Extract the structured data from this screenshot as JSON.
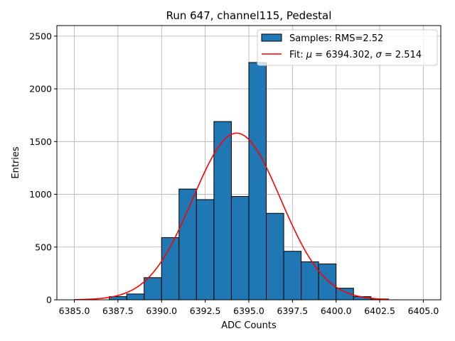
{
  "chart_data": {
    "type": "bar",
    "title": "Run 647, channel115, Pedestal",
    "xlabel": "ADC Counts",
    "ylabel": "Entries",
    "xlim": [
      6384.0,
      6406.0
    ],
    "ylim": [
      0,
      2600
    ],
    "xticks": [
      6385.0,
      6387.5,
      6390.0,
      6392.5,
      6395.0,
      6397.5,
      6400.0,
      6402.5,
      6405.0
    ],
    "xtick_labels": [
      "6385.0",
      "6387.5",
      "6390.0",
      "6392.5",
      "6395.0",
      "6397.5",
      "6400.0",
      "6402.5",
      "6405.0"
    ],
    "yticks": [
      0,
      500,
      1000,
      1500,
      2000,
      2500
    ],
    "ytick_labels": [
      "0",
      "500",
      "1000",
      "1500",
      "2000",
      "2500"
    ],
    "grid": true,
    "bins": [
      {
        "x0": 6387.0,
        "x1": 6388.0,
        "value": 30
      },
      {
        "x0": 6388.0,
        "x1": 6389.0,
        "value": 55
      },
      {
        "x0": 6389.0,
        "x1": 6390.0,
        "value": 210
      },
      {
        "x0": 6390.0,
        "x1": 6391.0,
        "value": 590
      },
      {
        "x0": 6391.0,
        "x1": 6392.0,
        "value": 1050
      },
      {
        "x0": 6392.0,
        "x1": 6393.0,
        "value": 950
      },
      {
        "x0": 6393.0,
        "x1": 6394.0,
        "value": 1690
      },
      {
        "x0": 6394.0,
        "x1": 6395.0,
        "value": 980
      },
      {
        "x0": 6395.0,
        "x1": 6396.0,
        "value": 2250
      },
      {
        "x0": 6396.0,
        "x1": 6397.0,
        "value": 820
      },
      {
        "x0": 6397.0,
        "x1": 6398.0,
        "value": 460
      },
      {
        "x0": 6398.0,
        "x1": 6399.0,
        "value": 360
      },
      {
        "x0": 6399.0,
        "x1": 6400.0,
        "value": 340
      },
      {
        "x0": 6400.0,
        "x1": 6401.0,
        "value": 110
      },
      {
        "x0": 6401.0,
        "x1": 6402.0,
        "value": 30
      },
      {
        "x0": 6402.0,
        "x1": 6403.0,
        "value": 8
      }
    ],
    "fit": {
      "type": "gaussian",
      "mu": 6394.302,
      "sigma": 2.514,
      "amplitude": 1580,
      "x_range": [
        6385.0,
        6403.0
      ]
    },
    "colors": {
      "bar_fill": "#1f77b4",
      "bar_edge": "#000000",
      "fit_line": "#ff0000"
    },
    "legend": {
      "position": "top-right",
      "samples_label": "Samples: RMS=2.52",
      "fit_prefix": "Fit: ",
      "mu_symbol": "μ",
      "fit_mu_text": " = 6394.302, ",
      "sigma_symbol": "σ",
      "fit_sigma_text": " = 2.514"
    }
  }
}
